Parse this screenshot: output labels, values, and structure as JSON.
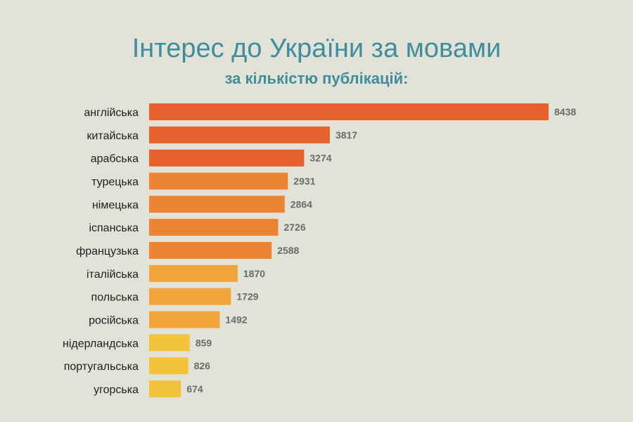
{
  "chart_data": {
    "type": "bar",
    "orientation": "horizontal",
    "title": "Інтерес до України за мовами",
    "subtitle": "за кількістю публікацій:",
    "xlabel": "",
    "ylabel": "",
    "xlim": [
      0,
      8438
    ],
    "grid": false,
    "categories": [
      "англійська",
      "китайська",
      "арабська",
      "турецька",
      "німецька",
      "іспанська",
      "французька",
      "італійська",
      "польська",
      "російська",
      "нідерландська",
      "португальська",
      "угорська"
    ],
    "values": [
      8438,
      3817,
      3274,
      2931,
      2864,
      2726,
      2588,
      1870,
      1729,
      1492,
      859,
      826,
      674
    ],
    "colors": [
      "#e5622f",
      "#e5622f",
      "#e5622f",
      "#ec8433",
      "#ec8433",
      "#ec8433",
      "#ec8433",
      "#f1a53a",
      "#f1a53a",
      "#f1a53a",
      "#f4c33c",
      "#f4c33c",
      "#f4c33c"
    ]
  }
}
